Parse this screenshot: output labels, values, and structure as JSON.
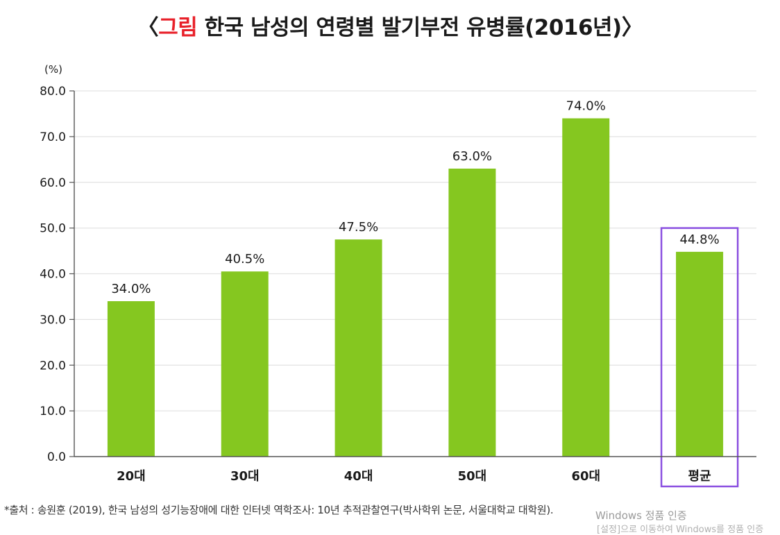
{
  "header": {
    "open_bracket": "〈",
    "label": "그림",
    "title": "한국 남성의 연령별 발기부전 유병률(2016년)",
    "close_bracket": "〉",
    "accent_color": "#e8212a"
  },
  "chart_data": {
    "type": "bar",
    "categories": [
      "20대",
      "30대",
      "40대",
      "50대",
      "60대",
      "평균"
    ],
    "values": [
      34.0,
      40.5,
      47.5,
      63.0,
      74.0,
      44.8
    ],
    "value_labels": [
      "34.0%",
      "40.5%",
      "47.5%",
      "63.0%",
      "74.0%",
      "44.8%"
    ],
    "y_unit": "(%)",
    "ylim": [
      0,
      80
    ],
    "y_ticks": [
      0,
      10,
      20,
      30,
      40,
      50,
      60,
      70,
      80
    ],
    "y_tick_labels": [
      "0.0",
      "10.0",
      "20.0",
      "30.0",
      "40.0",
      "50.0",
      "60.0",
      "70.0",
      "80.0"
    ],
    "grid": true,
    "bar_color": "#85c720",
    "highlight_category": "평균",
    "highlight_color": "#8a4fe0"
  },
  "footer": {
    "source": "*출처 : 송원훈 (2019), 한국 남성의 성기능장애에 대한 인터넷 역학조사: 10년 추적관찰연구(박사학위 논문, 서울대학교 대학원)."
  },
  "overlay": {
    "line1": "Windows 정품 인증",
    "line2": "[설정]으로 이동하여 Windows를 정품 인증"
  }
}
